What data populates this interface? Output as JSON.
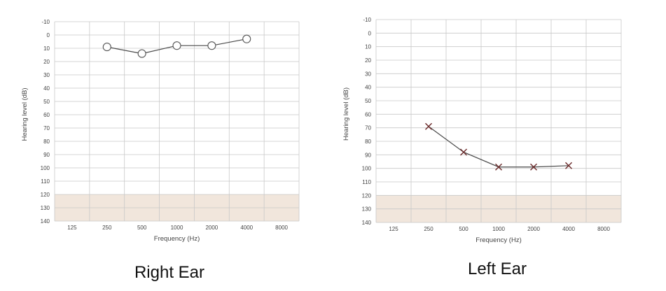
{
  "chart_data": [
    {
      "type": "line",
      "caption": "Right Ear",
      "xlabel": "Frequency (Hz)",
      "ylabel": "Hearing level (dB)",
      "x_ticks": [
        "125",
        "250",
        "500",
        "1000",
        "2000",
        "4000",
        "8000"
      ],
      "y_ticks": [
        "-10",
        "0",
        "10",
        "20",
        "30",
        "40",
        "50",
        "60",
        "70",
        "80",
        "90",
        "100",
        "110",
        "120",
        "130",
        "140"
      ],
      "ylim": [
        -10,
        140
      ],
      "y_inverted": true,
      "shaded_band": [
        120,
        140
      ],
      "marker": "circle",
      "series": [
        {
          "x": [
            250,
            500,
            1000,
            2000,
            4000
          ],
          "y": [
            9,
            14,
            8,
            8,
            3
          ]
        }
      ],
      "grid": true,
      "colors": {
        "line": "#4a4a4a",
        "grid": "#c8c8c8",
        "band": "#f1e6dc"
      }
    },
    {
      "type": "line",
      "caption": "Left Ear",
      "xlabel": "Frequency (Hz)",
      "ylabel": "Hearing level (dB)",
      "x_ticks": [
        "125",
        "250",
        "500",
        "1000",
        "2000",
        "4000",
        "8000"
      ],
      "y_ticks": [
        "-10",
        "0",
        "10",
        "20",
        "30",
        "40",
        "50",
        "60",
        "70",
        "80",
        "90",
        "100",
        "110",
        "120",
        "130",
        "140"
      ],
      "ylim": [
        -10,
        140
      ],
      "y_inverted": true,
      "shaded_band": [
        120,
        140
      ],
      "marker": "cross",
      "series": [
        {
          "x": [
            250,
            500,
            1000,
            2000,
            4000
          ],
          "y": [
            69,
            88,
            99,
            99,
            98
          ]
        }
      ],
      "grid": true,
      "colors": {
        "line": "#4a4a4a",
        "grid": "#c8c8c8",
        "band": "#f1e6dc",
        "marker": "#6b2a2a"
      }
    }
  ]
}
